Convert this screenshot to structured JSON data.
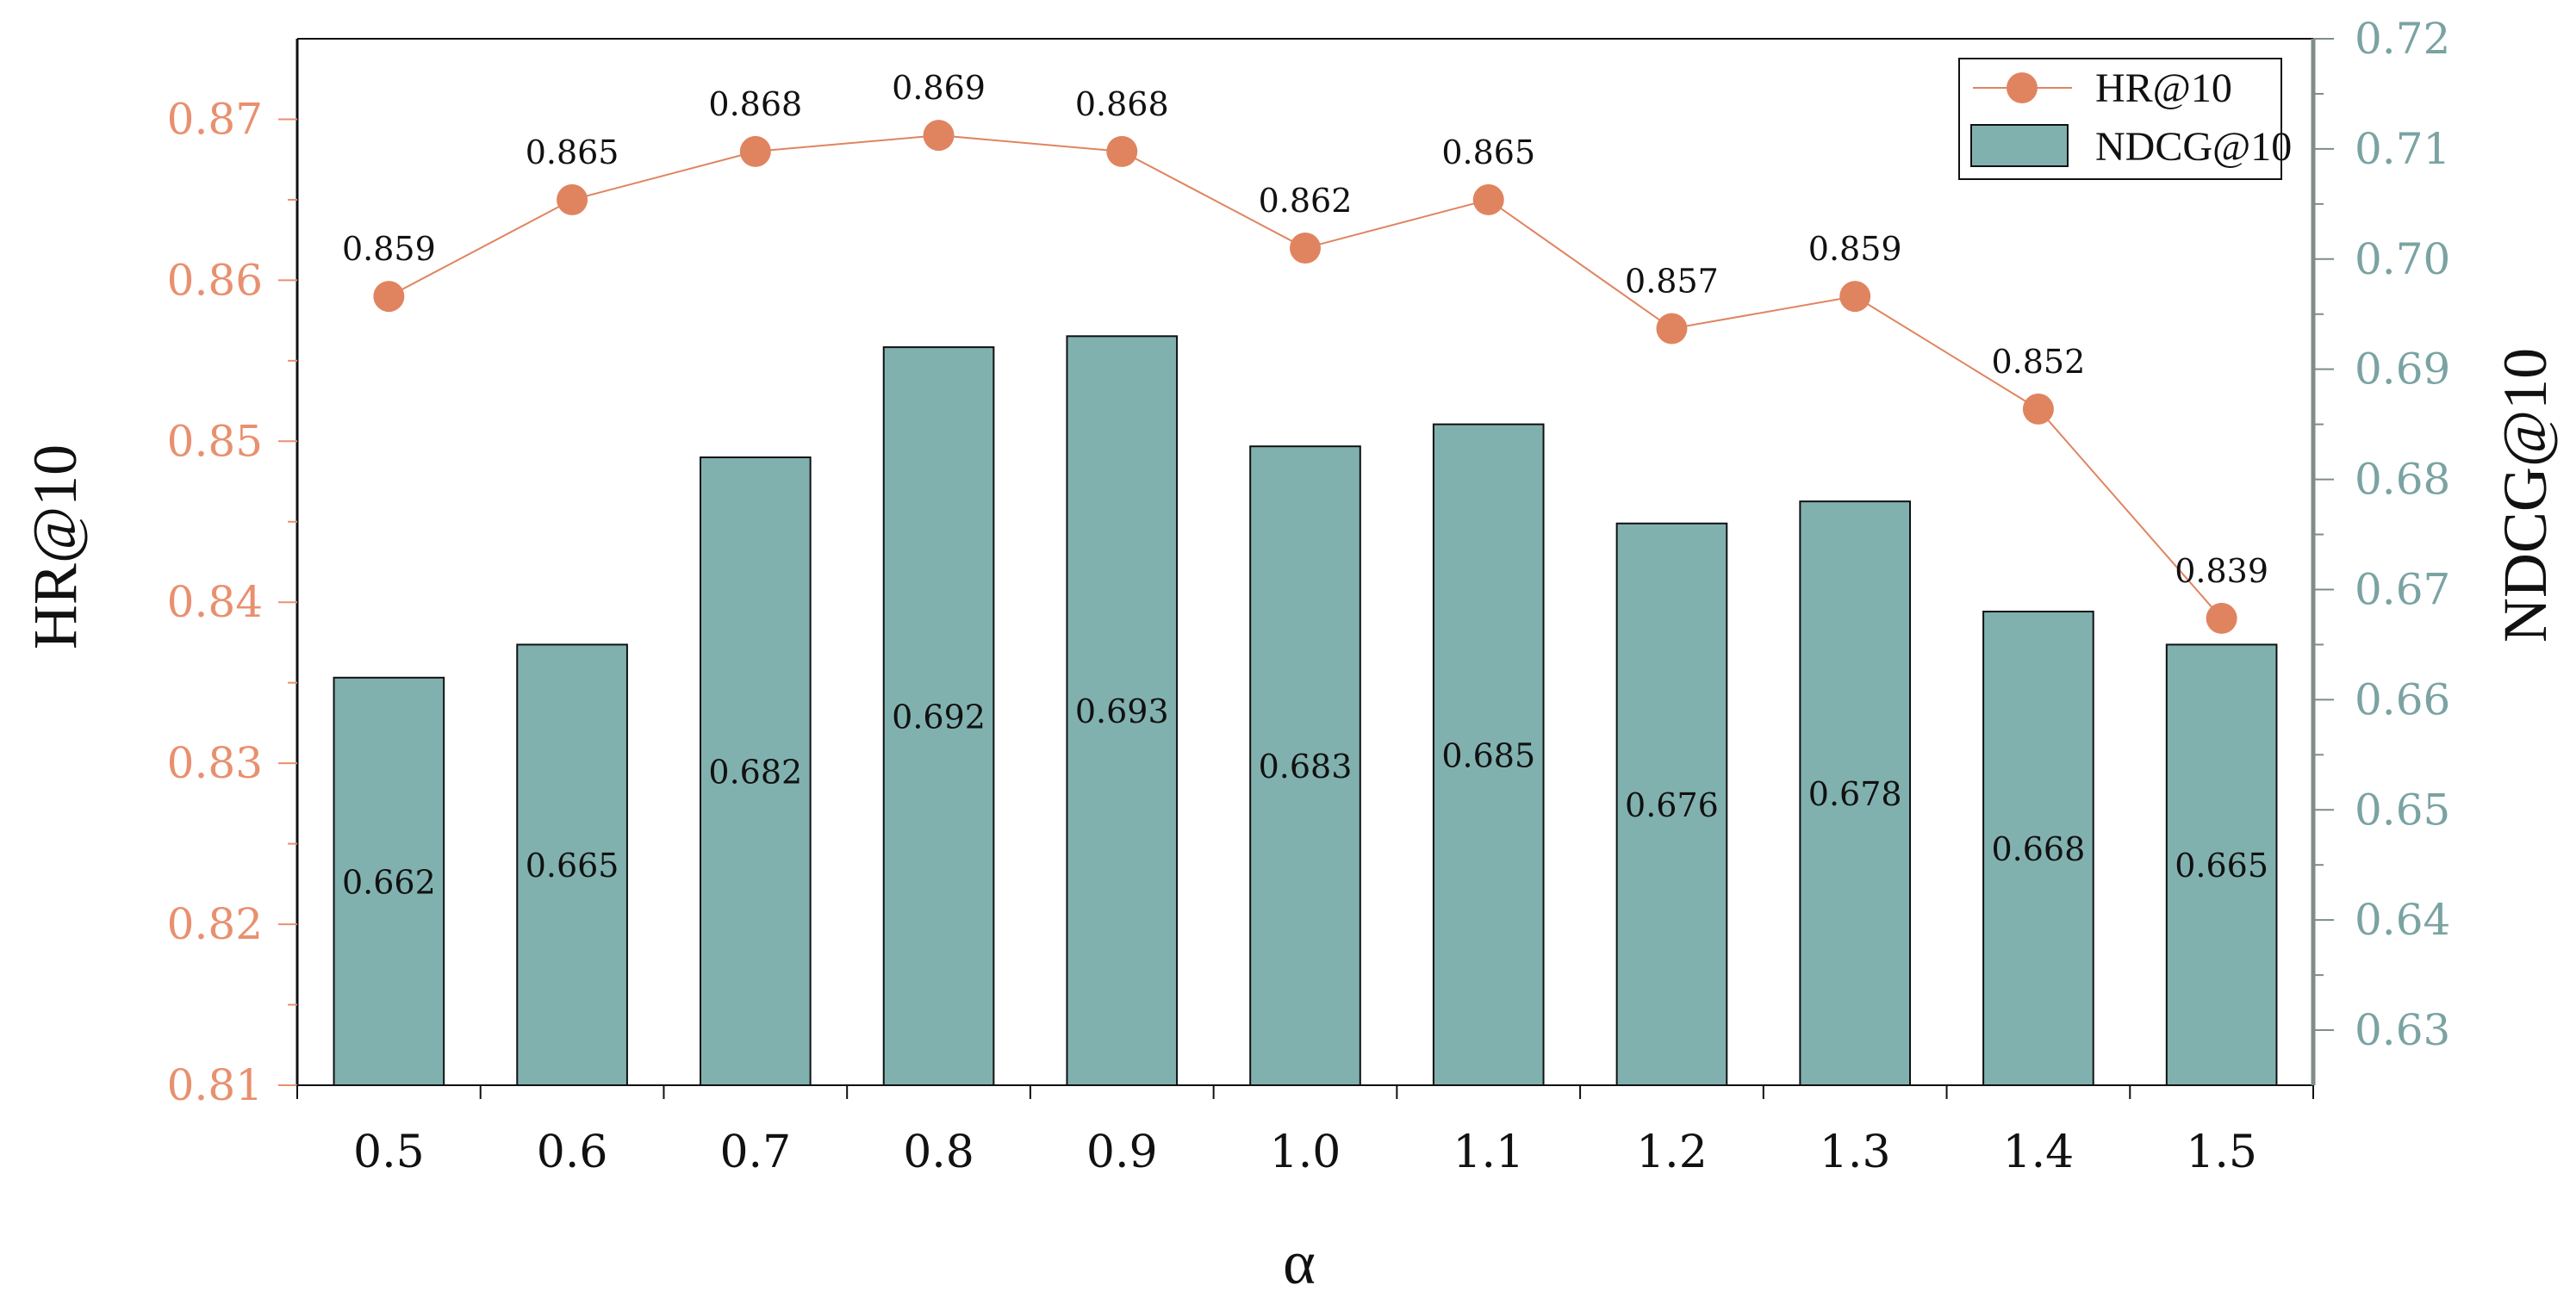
{
  "chart_data": {
    "type": "bar+line",
    "xlabel": "α",
    "ylabel_left": "HR@10",
    "ylabel_right": "NDCG@10",
    "categories": [
      "0.5",
      "0.6",
      "0.7",
      "0.8",
      "0.9",
      "1.0",
      "1.1",
      "1.2",
      "1.3",
      "1.4",
      "1.5"
    ],
    "series": [
      {
        "name": "HR@10",
        "kind": "line",
        "axis": "left",
        "color": "#E08460",
        "values": [
          0.859,
          0.865,
          0.868,
          0.869,
          0.868,
          0.862,
          0.865,
          0.857,
          0.859,
          0.852,
          0.839
        ],
        "labels": [
          "0.859",
          "0.865",
          "0.868",
          "0.869",
          "0.868",
          "0.862",
          "0.865",
          "0.857",
          "0.859",
          "0.852",
          "0.839"
        ]
      },
      {
        "name": "NDCG@10",
        "kind": "bar",
        "axis": "right",
        "color": "#80B1AF",
        "values": [
          0.662,
          0.665,
          0.682,
          0.692,
          0.693,
          0.683,
          0.685,
          0.676,
          0.678,
          0.668,
          0.665
        ],
        "labels": [
          "0.662",
          "0.665",
          "0.682",
          "0.692",
          "0.693",
          "0.683",
          "0.685",
          "0.676",
          "0.678",
          "0.668",
          "0.665"
        ]
      }
    ],
    "ylim_left": [
      0.81,
      0.875
    ],
    "yticks_left": [
      "0.81",
      "0.82",
      "0.83",
      "0.84",
      "0.85",
      "0.86",
      "0.87"
    ],
    "ylim_right": [
      0.625,
      0.72
    ],
    "yticks_right": [
      "0.63",
      "0.64",
      "0.65",
      "0.66",
      "0.67",
      "0.68",
      "0.69",
      "0.70",
      "0.71",
      "0.72"
    ],
    "legend_position": "top-right",
    "grid": false,
    "colors": {
      "left_axis": "#E8906F",
      "right_axis": "#7AA3A2",
      "line": "#E08460",
      "bar": "#80B1AF"
    }
  }
}
